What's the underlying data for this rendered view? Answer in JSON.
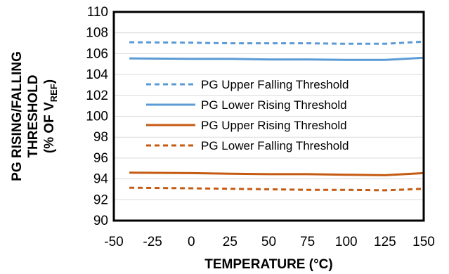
{
  "chart_data": {
    "type": "line",
    "title": "",
    "xlabel": "TEMPERATURE (°C)",
    "ylabel_lines": [
      "PG RISING/FALLING",
      "THRESHOLD"
    ],
    "ylabel_units_prefix": "(% OF V",
    "ylabel_units_sub": "REF",
    "ylabel_units_suffix": ")",
    "xlim": [
      -50,
      150
    ],
    "ylim": [
      90,
      110
    ],
    "xticks": [
      "-50",
      "-25",
      "0",
      "25",
      "50",
      "75",
      "100",
      "125",
      "150"
    ],
    "yticks": [
      "90",
      "92",
      "94",
      "96",
      "98",
      "100",
      "102",
      "104",
      "106",
      "108",
      "110"
    ],
    "grid": "horizontal",
    "legend_position": "center",
    "series": [
      {
        "name": "PG Upper Falling Threshold",
        "color": "#5b9bd5",
        "dash": "dashed",
        "x": [
          -40,
          0,
          25,
          50,
          75,
          100,
          125,
          150
        ],
        "y": [
          107.1,
          107.05,
          107.0,
          107.0,
          107.0,
          106.95,
          106.95,
          107.15
        ]
      },
      {
        "name": "PG Lower Rising Threshold",
        "color": "#5b9bd5",
        "dash": "solid",
        "x": [
          -40,
          0,
          25,
          50,
          75,
          100,
          125,
          150
        ],
        "y": [
          105.55,
          105.5,
          105.5,
          105.45,
          105.45,
          105.4,
          105.4,
          105.6
        ]
      },
      {
        "name": "PG Upper Rising Threshold",
        "color": "#c55a11",
        "dash": "solid",
        "x": [
          -40,
          0,
          25,
          50,
          75,
          100,
          125,
          150
        ],
        "y": [
          94.6,
          94.55,
          94.5,
          94.45,
          94.45,
          94.4,
          94.35,
          94.55
        ]
      },
      {
        "name": "PG Lower Falling Threshold",
        "color": "#c55a11",
        "dash": "dashed",
        "x": [
          -40,
          0,
          25,
          50,
          75,
          100,
          125,
          150
        ],
        "y": [
          93.15,
          93.1,
          93.05,
          93.0,
          92.95,
          92.95,
          92.9,
          93.05
        ]
      }
    ]
  }
}
